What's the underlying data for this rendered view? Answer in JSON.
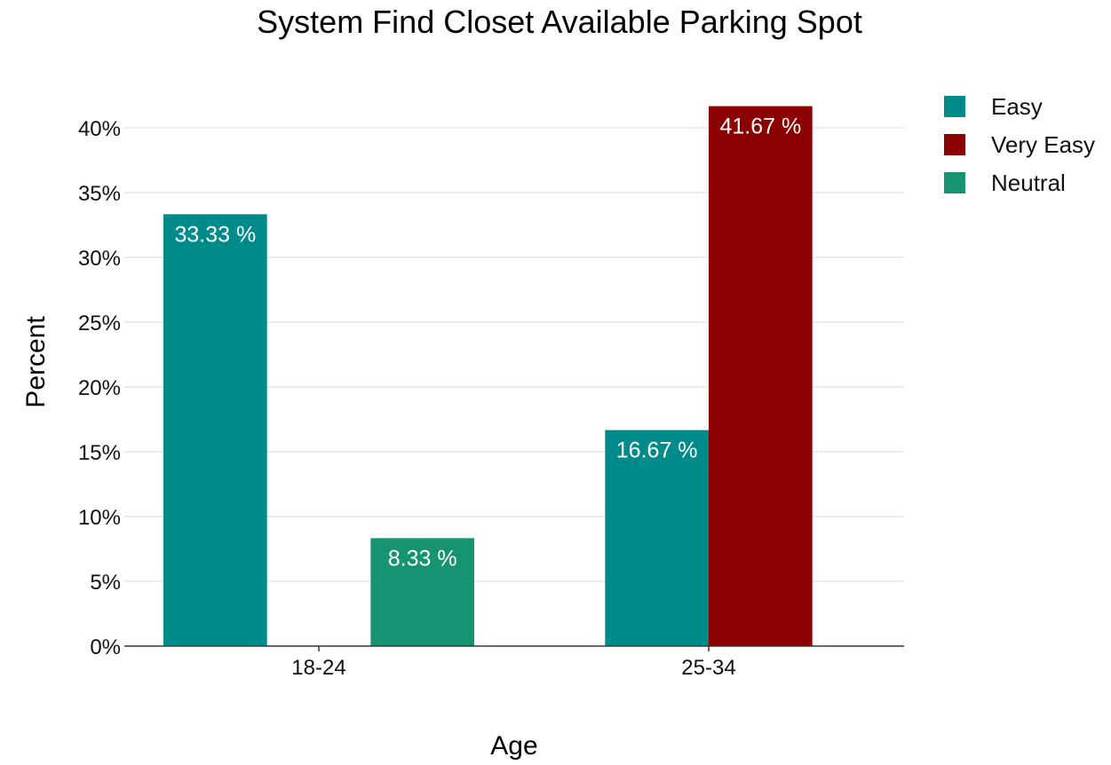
{
  "chart_data": {
    "type": "bar",
    "title": "System Find Closet Available Parking Spot",
    "xlabel": "Age",
    "ylabel": "Percent",
    "categories": [
      "18-24",
      "25-34"
    ],
    "ylim": [
      0,
      42
    ],
    "yticks": [
      0,
      5,
      10,
      15,
      20,
      25,
      30,
      35,
      40
    ],
    "ytick_labels": [
      "0%",
      "5%",
      "10%",
      "15%",
      "20%",
      "25%",
      "30%",
      "35%",
      "40%"
    ],
    "grid": true,
    "legend_position": "top-right",
    "series": [
      {
        "name": "Easy",
        "color": "#008B8B",
        "values": [
          33.33,
          16.67
        ],
        "labels": [
          "33.33 %",
          "16.67 %"
        ]
      },
      {
        "name": "Very Easy",
        "color": "#8B0000",
        "values": [
          null,
          41.67
        ],
        "labels": [
          null,
          "41.67 %"
        ]
      },
      {
        "name": "Neutral",
        "color": "#169370",
        "values": [
          8.33,
          null
        ],
        "labels": [
          "8.33 %",
          null
        ]
      }
    ]
  }
}
